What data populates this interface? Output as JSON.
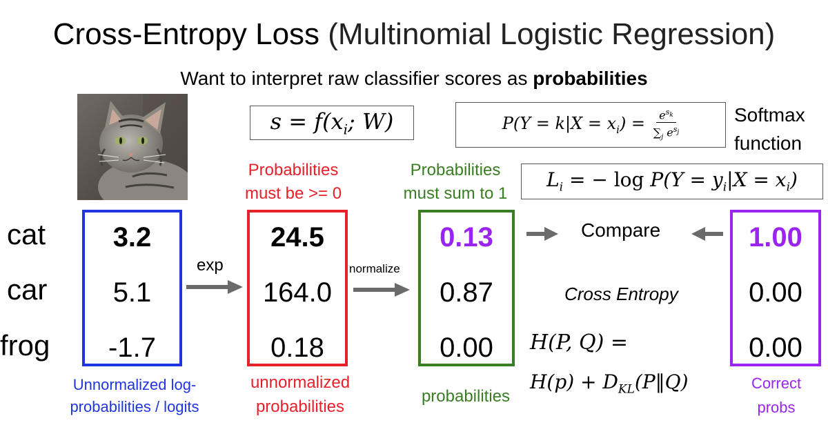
{
  "title": {
    "main": "Cross-Entropy Loss",
    "paren": "(Multinomial Logistic Regression)"
  },
  "subtitle": {
    "prefix": "Want to interpret raw classifier scores as",
    "bold": "probabilities"
  },
  "softmax": {
    "line1": "Softmax",
    "line2": "function"
  },
  "notes": {
    "red_top_1": "Probabilities",
    "red_top_2": "must be >= 0",
    "green_top_1": "Probabilities",
    "green_top_2": "must sum to 1",
    "blue_bottom_1": "Unnormalized log-",
    "blue_bottom_2": "probabilities / logits",
    "red_bottom_1": "unnormalized",
    "red_bottom_2": "probabilities",
    "green_bottom": "probabilities",
    "purple_bottom_1": "Correct",
    "purple_bottom_2": "probs"
  },
  "labels": {
    "cat": "cat",
    "car": "car",
    "frog": "frog"
  },
  "arrows": {
    "exp": "exp",
    "normalize": "normalize",
    "compare": "Compare",
    "cross_entropy": "Cross Entropy"
  },
  "columns": {
    "scores": [
      "3.2",
      "5.1",
      "-1.7"
    ],
    "exp": [
      "24.5",
      "164.0",
      "0.18"
    ],
    "probs": [
      "0.13",
      "0.87",
      "0.00"
    ],
    "correct": [
      "1.00",
      "0.00",
      "0.00"
    ]
  },
  "colors": {
    "blue": "#1f35e0",
    "red": "#e8202a",
    "green": "#3a7d23",
    "purple": "#9a24f0",
    "arrow": "#6b6b6b"
  }
}
